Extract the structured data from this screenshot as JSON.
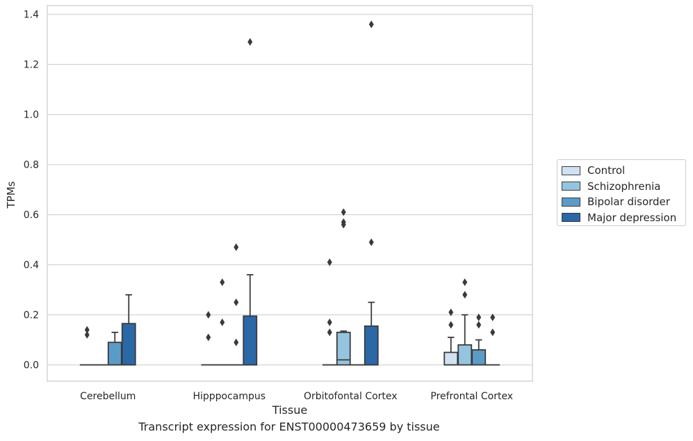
{
  "caption": "Transcript expression for ENST00000473659 by tissue",
  "chart_data": {
    "type": "box",
    "xlabel": "Tissue",
    "ylabel": "TPMs",
    "ylim": [
      -0.065,
      1.435
    ],
    "yticks": [
      0.0,
      0.2,
      0.4,
      0.6,
      0.8,
      1.0,
      1.2,
      1.4
    ],
    "ytick_labels": [
      "0.0",
      "0.2",
      "0.4",
      "0.6",
      "0.8",
      "1.0",
      "1.2",
      "1.4"
    ],
    "grid": true,
    "legend_position": "right",
    "categories": [
      "Cerebellum",
      "Hipppocampus",
      "Orbitofontal Cortex",
      "Prefrontal Cortex"
    ],
    "series": [
      {
        "name": "Control",
        "color": "#d0e1f2",
        "boxes": [
          {
            "q1": 0.0,
            "median": 0.0,
            "q3": 0.0,
            "whisker_low": 0.0,
            "whisker_high": 0.0,
            "outliers": [
              0.14,
              0.12
            ]
          },
          {
            "q1": 0.0,
            "median": 0.0,
            "q3": 0.0,
            "whisker_low": 0.0,
            "whisker_high": 0.0,
            "outliers": [
              0.2,
              0.11
            ]
          },
          {
            "q1": 0.0,
            "median": 0.0,
            "q3": 0.0,
            "whisker_low": 0.0,
            "whisker_high": 0.0,
            "outliers": [
              0.41,
              0.17,
              0.13
            ]
          },
          {
            "q1": 0.0,
            "median": 0.0,
            "q3": 0.05,
            "whisker_low": 0.0,
            "whisker_high": 0.11,
            "outliers": [
              0.21,
              0.16
            ]
          }
        ]
      },
      {
        "name": "Schizophrenia",
        "color": "#94c4df",
        "boxes": [
          {
            "q1": 0.0,
            "median": 0.0,
            "q3": 0.0,
            "whisker_low": 0.0,
            "whisker_high": 0.0,
            "outliers": []
          },
          {
            "q1": 0.0,
            "median": 0.0,
            "q3": 0.0,
            "whisker_low": 0.0,
            "whisker_high": 0.0,
            "outliers": [
              0.33,
              0.17
            ]
          },
          {
            "q1": 0.0,
            "median": 0.02,
            "q3": 0.13,
            "whisker_low": 0.0,
            "whisker_high": 0.135,
            "outliers": [
              0.61,
              0.57,
              0.56
            ]
          },
          {
            "q1": 0.0,
            "median": 0.0,
            "q3": 0.08,
            "whisker_low": 0.0,
            "whisker_high": 0.2,
            "outliers": [
              0.33,
              0.28
            ]
          }
        ]
      },
      {
        "name": "Bipolar disorder",
        "color": "#5b9bc8",
        "boxes": [
          {
            "q1": 0.0,
            "median": 0.0,
            "q3": 0.09,
            "whisker_low": 0.0,
            "whisker_high": 0.13,
            "outliers": []
          },
          {
            "q1": 0.0,
            "median": 0.0,
            "q3": 0.0,
            "whisker_low": 0.0,
            "whisker_high": 0.0,
            "outliers": [
              0.47,
              0.25,
              0.09
            ]
          },
          {
            "q1": 0.0,
            "median": 0.0,
            "q3": 0.0,
            "whisker_low": 0.0,
            "whisker_high": 0.0,
            "outliers": []
          },
          {
            "q1": 0.0,
            "median": 0.0,
            "q3": 0.06,
            "whisker_low": 0.0,
            "whisker_high": 0.1,
            "outliers": [
              0.19,
              0.16
            ]
          }
        ]
      },
      {
        "name": "Major depression",
        "color": "#2a68a8",
        "boxes": [
          {
            "q1": 0.0,
            "median": 0.0,
            "q3": 0.165,
            "whisker_low": 0.0,
            "whisker_high": 0.28,
            "outliers": []
          },
          {
            "q1": 0.0,
            "median": 0.0,
            "q3": 0.195,
            "whisker_low": 0.0,
            "whisker_high": 0.36,
            "outliers": [
              1.29
            ]
          },
          {
            "q1": 0.0,
            "median": 0.0,
            "q3": 0.155,
            "whisker_low": 0.0,
            "whisker_high": 0.25,
            "outliers": [
              1.36,
              0.49
            ]
          },
          {
            "q1": 0.0,
            "median": 0.0,
            "q3": 0.0,
            "whisker_low": 0.0,
            "whisker_high": 0.0,
            "outliers": [
              0.19,
              0.13
            ]
          }
        ]
      }
    ]
  }
}
